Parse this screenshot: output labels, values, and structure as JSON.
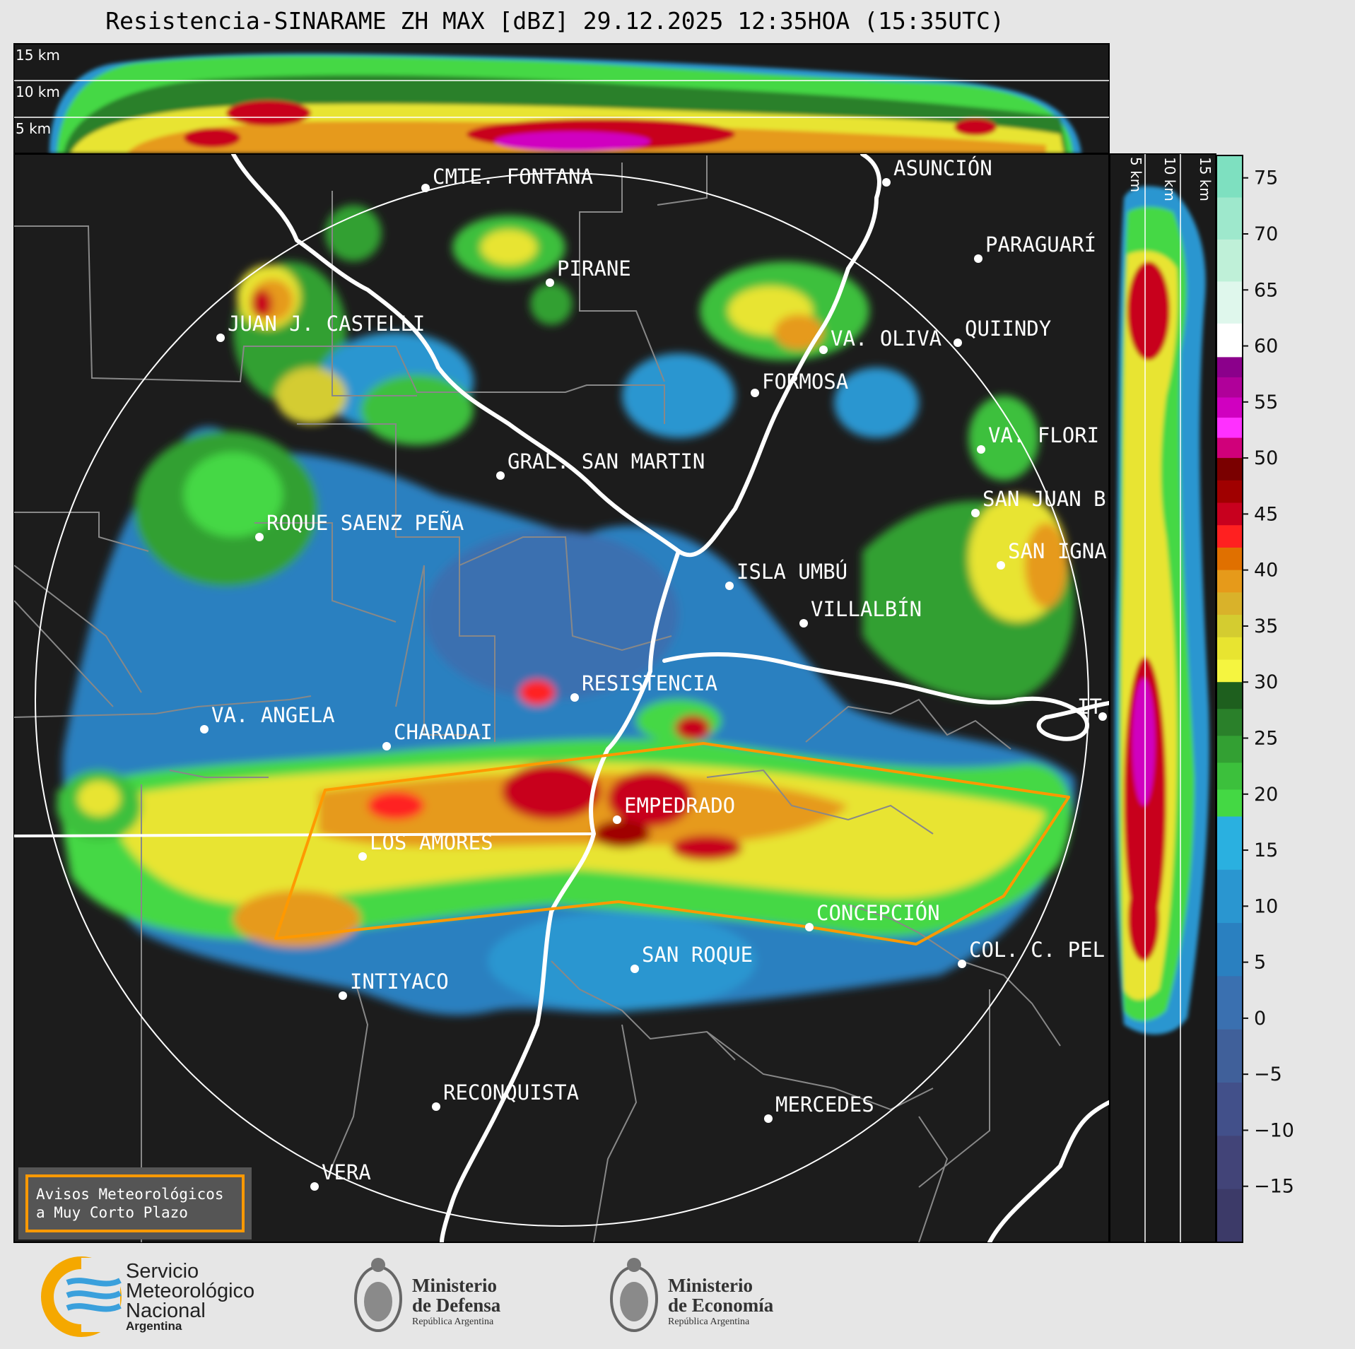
{
  "title": "Resistencia-SINARAME ZH MAX [dBZ] 29.12.2025 12:35HOA (15:35UTC)",
  "cross_section_top": {
    "height_labels": [
      "15 km",
      "10 km",
      "5 km"
    ]
  },
  "cross_section_right": {
    "height_labels": [
      "5 km",
      "10 km",
      "15 km"
    ]
  },
  "colorbar": {
    "unit": "dBZ",
    "ticks": [
      "75",
      "70",
      "65",
      "60",
      "55",
      "50",
      "45",
      "40",
      "35",
      "30",
      "25",
      "20",
      "15",
      "10",
      "5",
      "0",
      "−5",
      "−10",
      "−15"
    ],
    "colors": {
      "high": [
        "#7ee0c0",
        "#9ee8cc",
        "#bff0d8",
        "#dff7ec"
      ],
      "white_band": "#ffffff",
      "purple_pink": [
        "#8b008b",
        "#b0009a",
        "#d000c0",
        "#ff30ff",
        "#d0007a"
      ],
      "red": [
        "#7a0000",
        "#a00000",
        "#c8001e",
        "#ff2020"
      ],
      "orange_yellow": [
        "#e07000",
        "#e69a1a",
        "#d9b22a",
        "#d4cc30",
        "#e8e430",
        "#f5f540"
      ],
      "green": [
        "#1e5f1e",
        "#2a802a",
        "#33a033",
        "#3cc03c",
        "#44d844"
      ],
      "blue": [
        "#2ab0e0",
        "#2a96d0",
        "#2a80c0",
        "#3a70b0",
        "#40609a",
        "#42508a",
        "#424478",
        "#3c3a68"
      ]
    }
  },
  "radar": {
    "range_ring": "circle",
    "warning_polygon_color": "#ff9900"
  },
  "cities": [
    {
      "name": "CMTE. FONTANA"
    },
    {
      "name": "ASUNCIÓN"
    },
    {
      "name": "PARAGUARÍ"
    },
    {
      "name": "PIRANE"
    },
    {
      "name": "JUAN J. CASTELLI"
    },
    {
      "name": "VA. OLIVA"
    },
    {
      "name": "QUIINDY"
    },
    {
      "name": "FORMOSA"
    },
    {
      "name": "VA. FLORI"
    },
    {
      "name": "GRAL. SAN MARTIN"
    },
    {
      "name": "SAN JUAN B"
    },
    {
      "name": "ROQUE SAENZ PEÑA"
    },
    {
      "name": "SAN IGNA"
    },
    {
      "name": "ISLA UMBÚ"
    },
    {
      "name": "VILLALBÍN"
    },
    {
      "name": "RESISTENCIA"
    },
    {
      "name": "VA. ANGELA"
    },
    {
      "name": "CHARADAI"
    },
    {
      "name": "IT"
    },
    {
      "name": "EMPEDRADO"
    },
    {
      "name": "LOS AMORES"
    },
    {
      "name": "CONCEPCIÓN"
    },
    {
      "name": "SAN ROQUE"
    },
    {
      "name": "COL. C. PEL"
    },
    {
      "name": "INTIYACO"
    },
    {
      "name": "RECONQUISTA"
    },
    {
      "name": "MERCEDES"
    },
    {
      "name": "VERA"
    }
  ],
  "warning_box": {
    "line1": "Avisos Meteorológicos",
    "line2": "a Muy Corto Plazo"
  },
  "logos": {
    "smn": {
      "line1": "Servicio",
      "line2": "Meteorológico",
      "line3": "Nacional",
      "line4": "Argentina"
    },
    "defensa": {
      "line1": "Ministerio",
      "line2": "de Defensa",
      "line3": "República Argentina"
    },
    "economia": {
      "line1": "Ministerio",
      "line2": "de Economía",
      "line3": "República Argentina"
    }
  }
}
